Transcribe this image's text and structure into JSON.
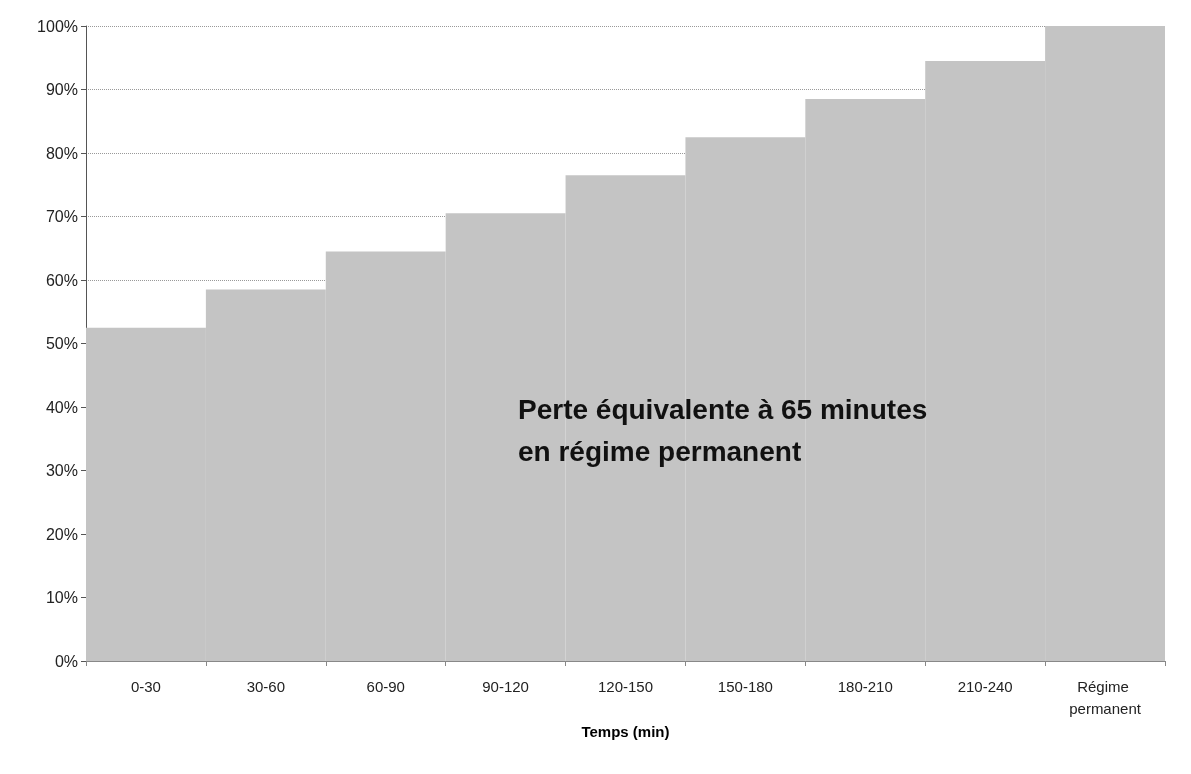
{
  "chart_data": {
    "type": "bar",
    "xlabel": "Temps (min)",
    "categories": [
      "0-30",
      "30-60",
      "60-90",
      "90-120",
      "120-150",
      "150-180",
      "180-210",
      "210-240",
      "Régime permanent"
    ],
    "values": [
      52.5,
      58.5,
      64.5,
      70.5,
      76.5,
      82.5,
      88.5,
      94.5,
      100
    ],
    "color": "#c4c4c4",
    "ylim": [
      0,
      100
    ],
    "yticks": [
      {
        "value": 0,
        "label": "0%"
      },
      {
        "value": 10,
        "label": "10%"
      },
      {
        "value": 20,
        "label": "20%"
      },
      {
        "value": 30,
        "label": "30%"
      },
      {
        "value": 40,
        "label": "40%"
      },
      {
        "value": 50,
        "label": "50%"
      },
      {
        "value": 60,
        "label": "60%"
      },
      {
        "value": 70,
        "label": "70%"
      },
      {
        "value": 80,
        "label": "80%"
      },
      {
        "value": 90,
        "label": "90%"
      },
      {
        "value": 100,
        "label": "100%"
      }
    ],
    "grid": "y",
    "annotations": [
      "Perte équivalente à 65 minutes\nen régime permanent"
    ]
  }
}
